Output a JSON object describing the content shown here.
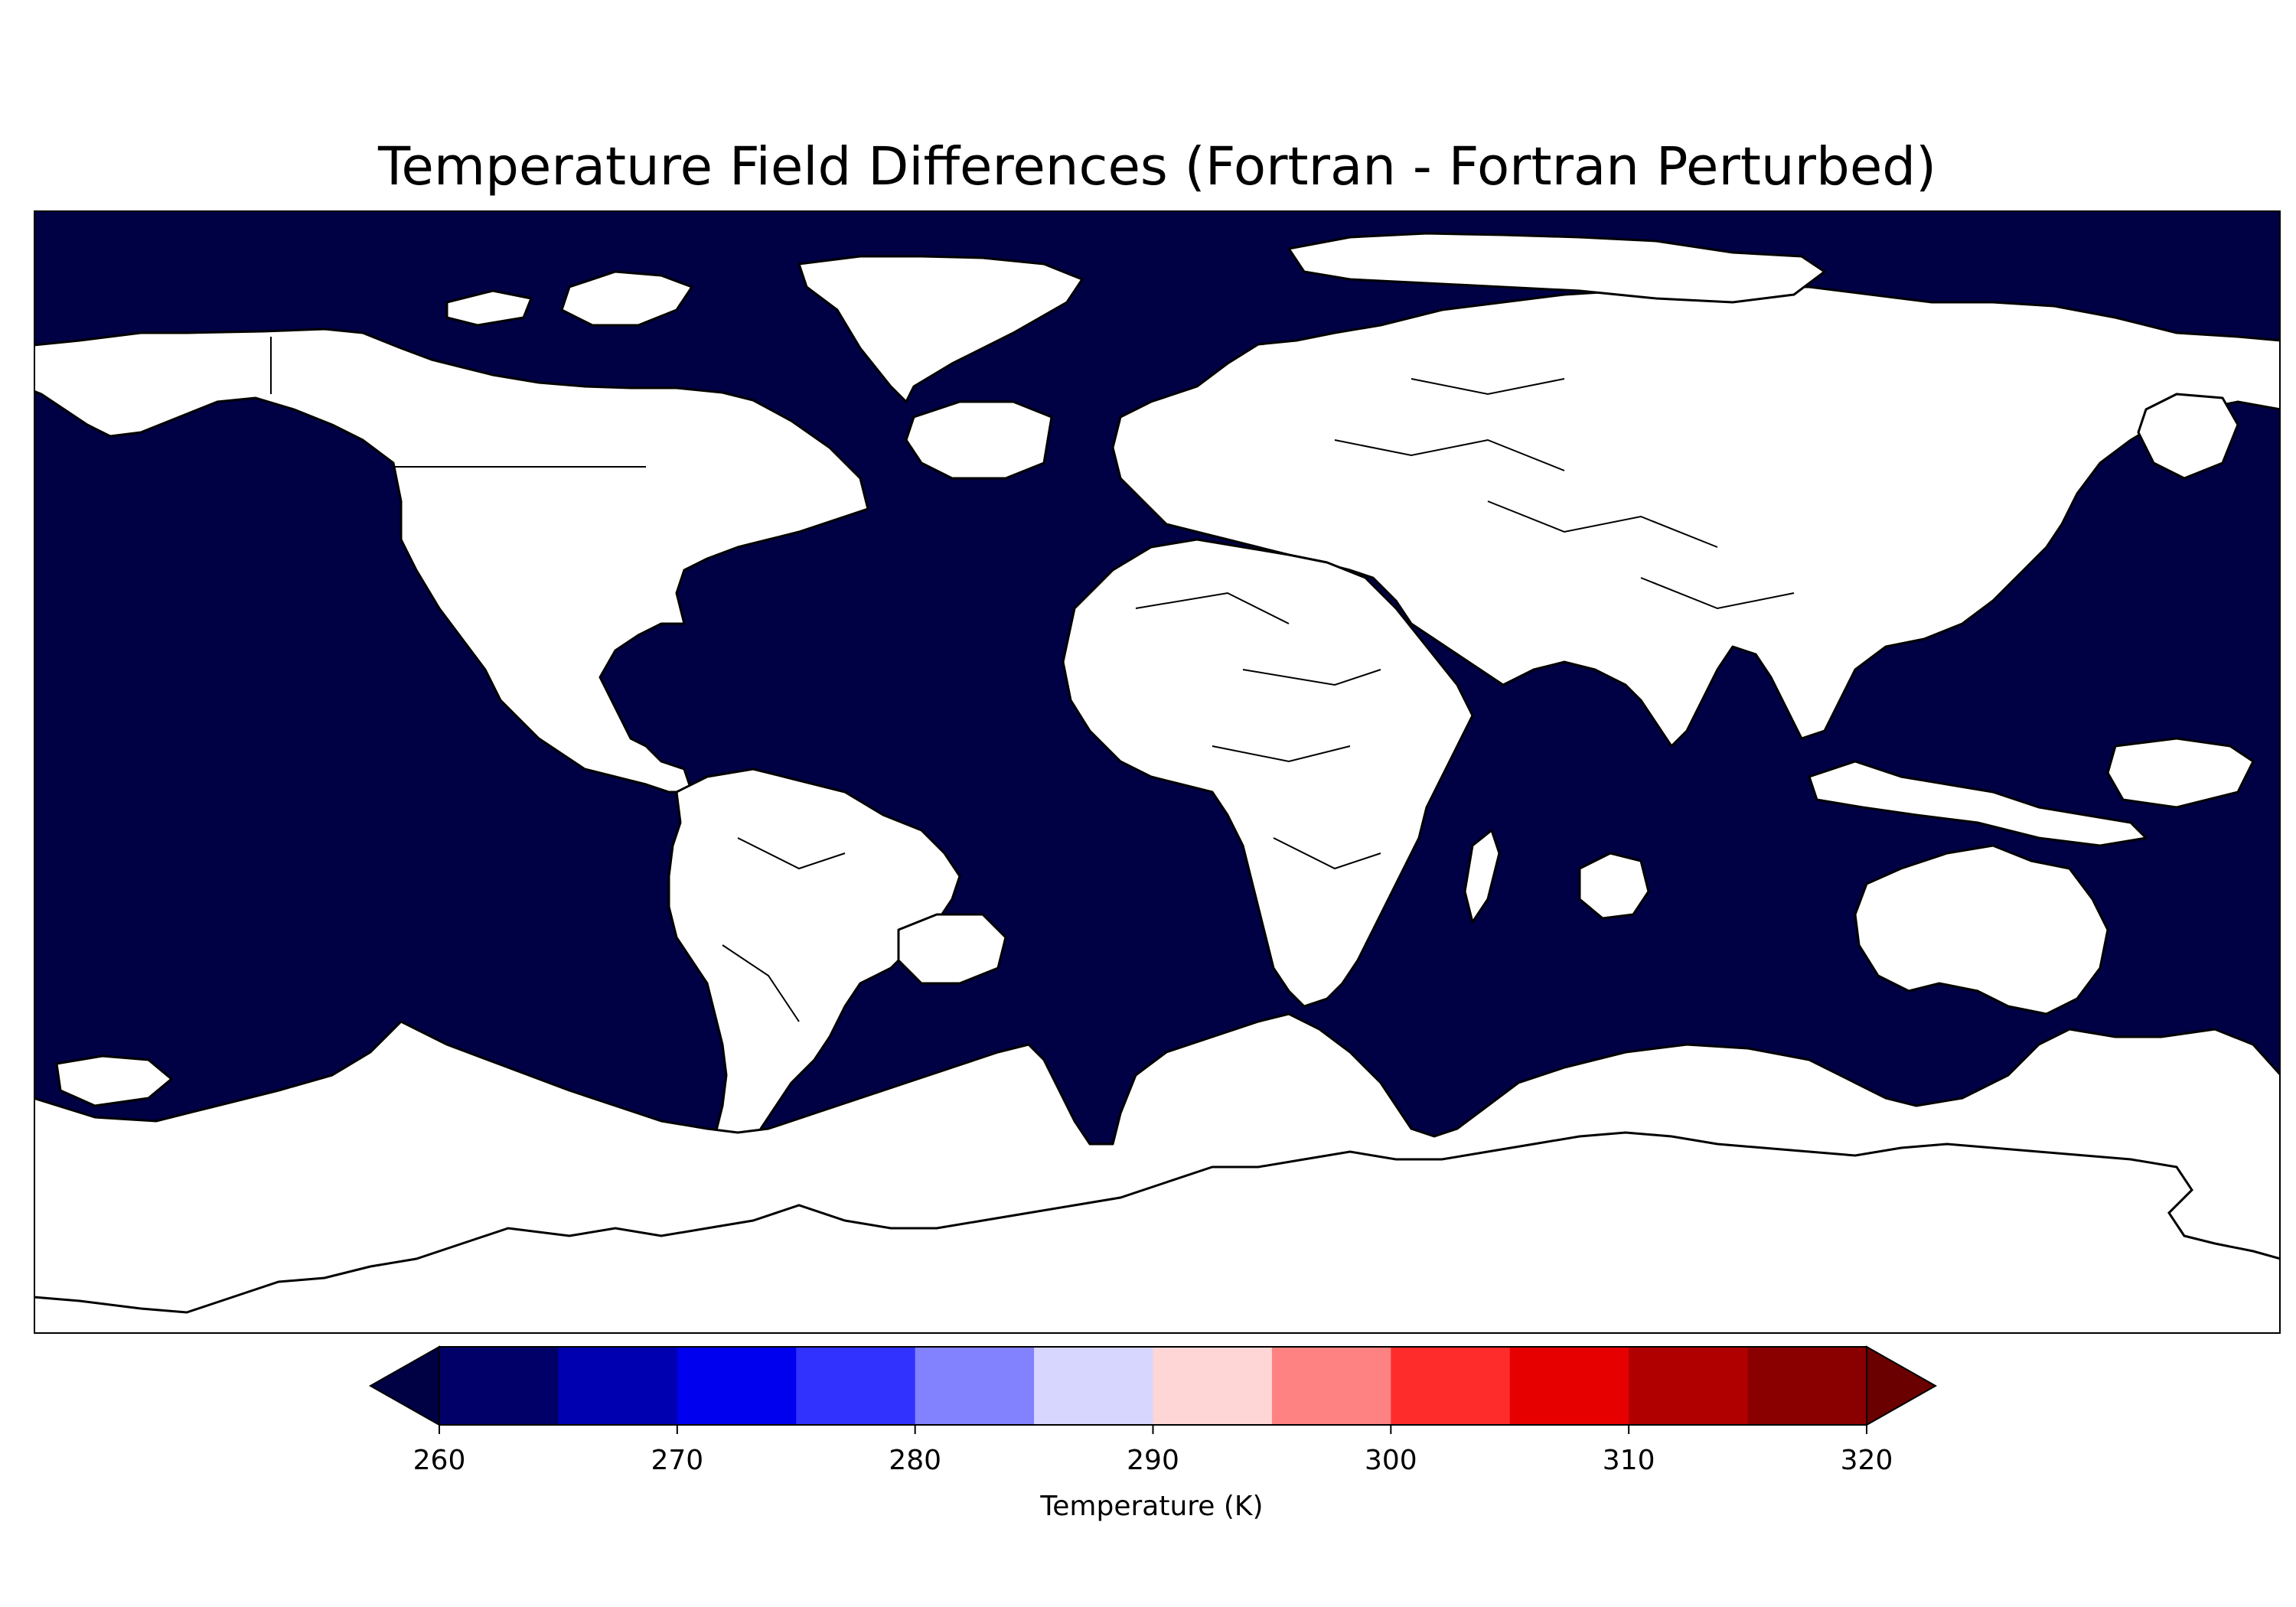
{
  "title": "Temperature Field Differences (Fortran - Fortran Perturbed)",
  "map": {
    "projection": "PlateCarree",
    "extent": {
      "lon": [
        -180,
        180
      ],
      "lat": [
        -90,
        90
      ]
    },
    "ocean_color": "#000045",
    "land_color": "#ffffff",
    "coastline_color": "#000000",
    "borders_shown": true
  },
  "colorbar": {
    "label": "Temperature (K)",
    "min": 260,
    "max": 320,
    "step": 5,
    "extend": "both",
    "ticks": [
      "260",
      "270",
      "280",
      "290",
      "300",
      "310",
      "320"
    ],
    "colors": [
      "#000045",
      "#000068",
      "#0000b1",
      "#0000ee",
      "#3232ff",
      "#8282ff",
      "#d6d6ff",
      "#ffd6d6",
      "#ff8282",
      "#ff2c2c",
      "#e70000",
      "#b10000",
      "#8a0000",
      "#6b0000"
    ]
  }
}
